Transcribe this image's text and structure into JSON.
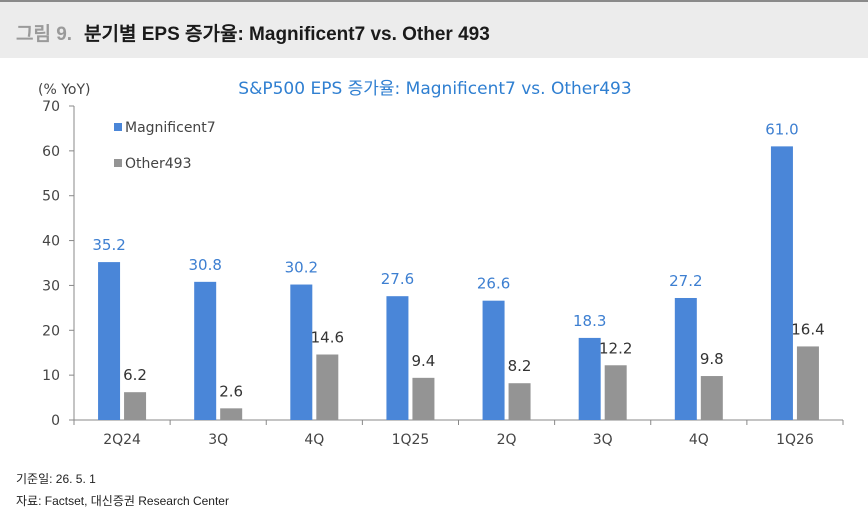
{
  "header": {
    "figure_number": "그림 9.",
    "figure_title": "분기별 EPS 증가율: Magnificent7 vs. Other 493"
  },
  "footer": {
    "date_line": "기준일: 26. 5. 1",
    "source_line": "자료: Factset, 대신증권 Research Center"
  },
  "chart_data": {
    "type": "bar",
    "title": "S&P500  EPS 증가율: Magnificent7 vs. Other493",
    "unit_label": "(% YoY)",
    "categories": [
      "2Q24",
      "3Q",
      "4Q",
      "1Q25",
      "2Q",
      "3Q",
      "4Q",
      "1Q26"
    ],
    "series": [
      {
        "name": "Magnificent7",
        "color": "#4a86d8",
        "label_color": "#3d7fd1",
        "values": [
          35.2,
          30.8,
          30.2,
          27.6,
          26.6,
          18.3,
          27.2,
          61.0
        ],
        "labels": [
          "35.2",
          "30.8",
          "30.2",
          "27.6",
          "26.6",
          "18.3",
          "27.2",
          "61.0"
        ]
      },
      {
        "name": "Other493",
        "color": "#949494",
        "label_color": "#333333",
        "values": [
          6.2,
          2.6,
          14.6,
          9.4,
          8.2,
          12.2,
          9.8,
          16.4
        ],
        "labels": [
          "6.2",
          "2.6",
          "14.6",
          "9.4",
          "8.2",
          "12.2",
          "9.8",
          "16.4"
        ]
      }
    ],
    "ylim": [
      0,
      70
    ],
    "yticks": [
      "0",
      "10",
      "20",
      "30",
      "40",
      "50",
      "60",
      "70"
    ],
    "grid": false,
    "legend_position": "top-left"
  }
}
